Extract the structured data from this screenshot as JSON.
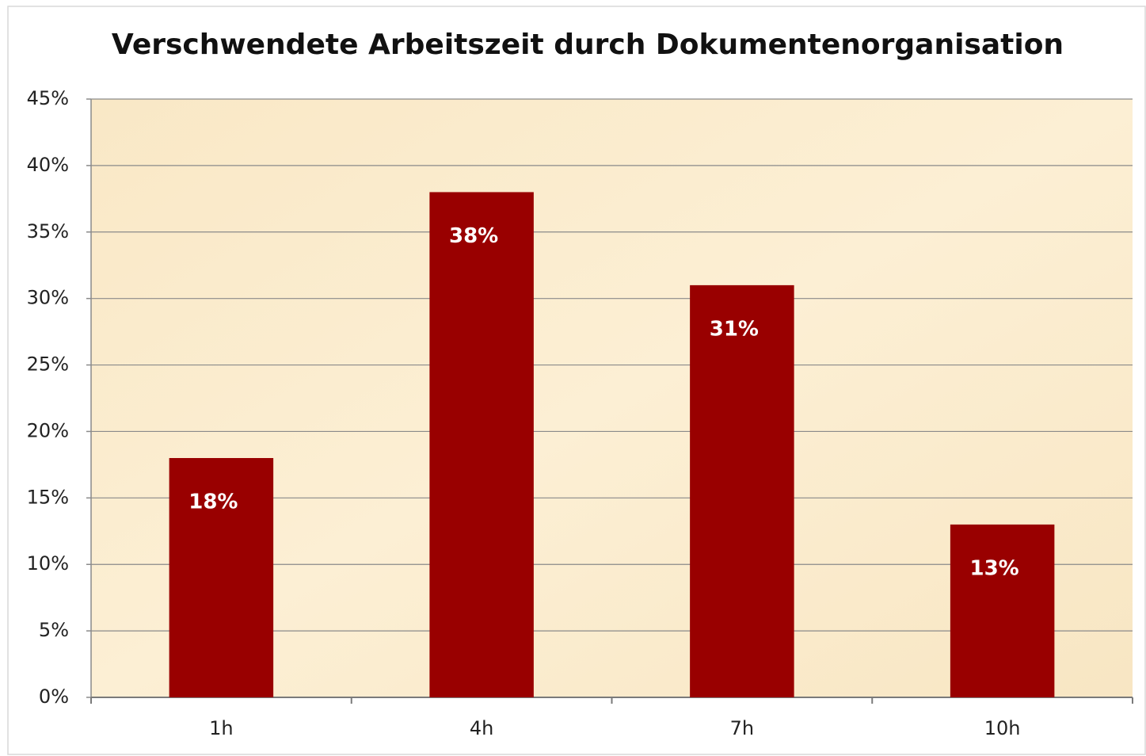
{
  "chart_data": {
    "type": "bar",
    "title": "Verschwendete Arbeitszeit durch Dokumentenorganisation",
    "categories": [
      "1h",
      "4h",
      "7h",
      "10h"
    ],
    "values": [
      18,
      38,
      31,
      13
    ],
    "value_labels": [
      "18%",
      "38%",
      "31%",
      "13%"
    ],
    "color": "#990000",
    "ylim": [
      0,
      45
    ],
    "yticks": [
      {
        "value": 0,
        "label": "0%"
      },
      {
        "value": 5,
        "label": "5%"
      },
      {
        "value": 10,
        "label": "10%"
      },
      {
        "value": 15,
        "label": "15%"
      },
      {
        "value": 20,
        "label": "20%"
      },
      {
        "value": 25,
        "label": "25%"
      },
      {
        "value": 30,
        "label": "30%"
      },
      {
        "value": 35,
        "label": "35%"
      },
      {
        "value": 40,
        "label": "40%"
      },
      {
        "value": 45,
        "label": "45%"
      }
    ],
    "grid": true
  }
}
